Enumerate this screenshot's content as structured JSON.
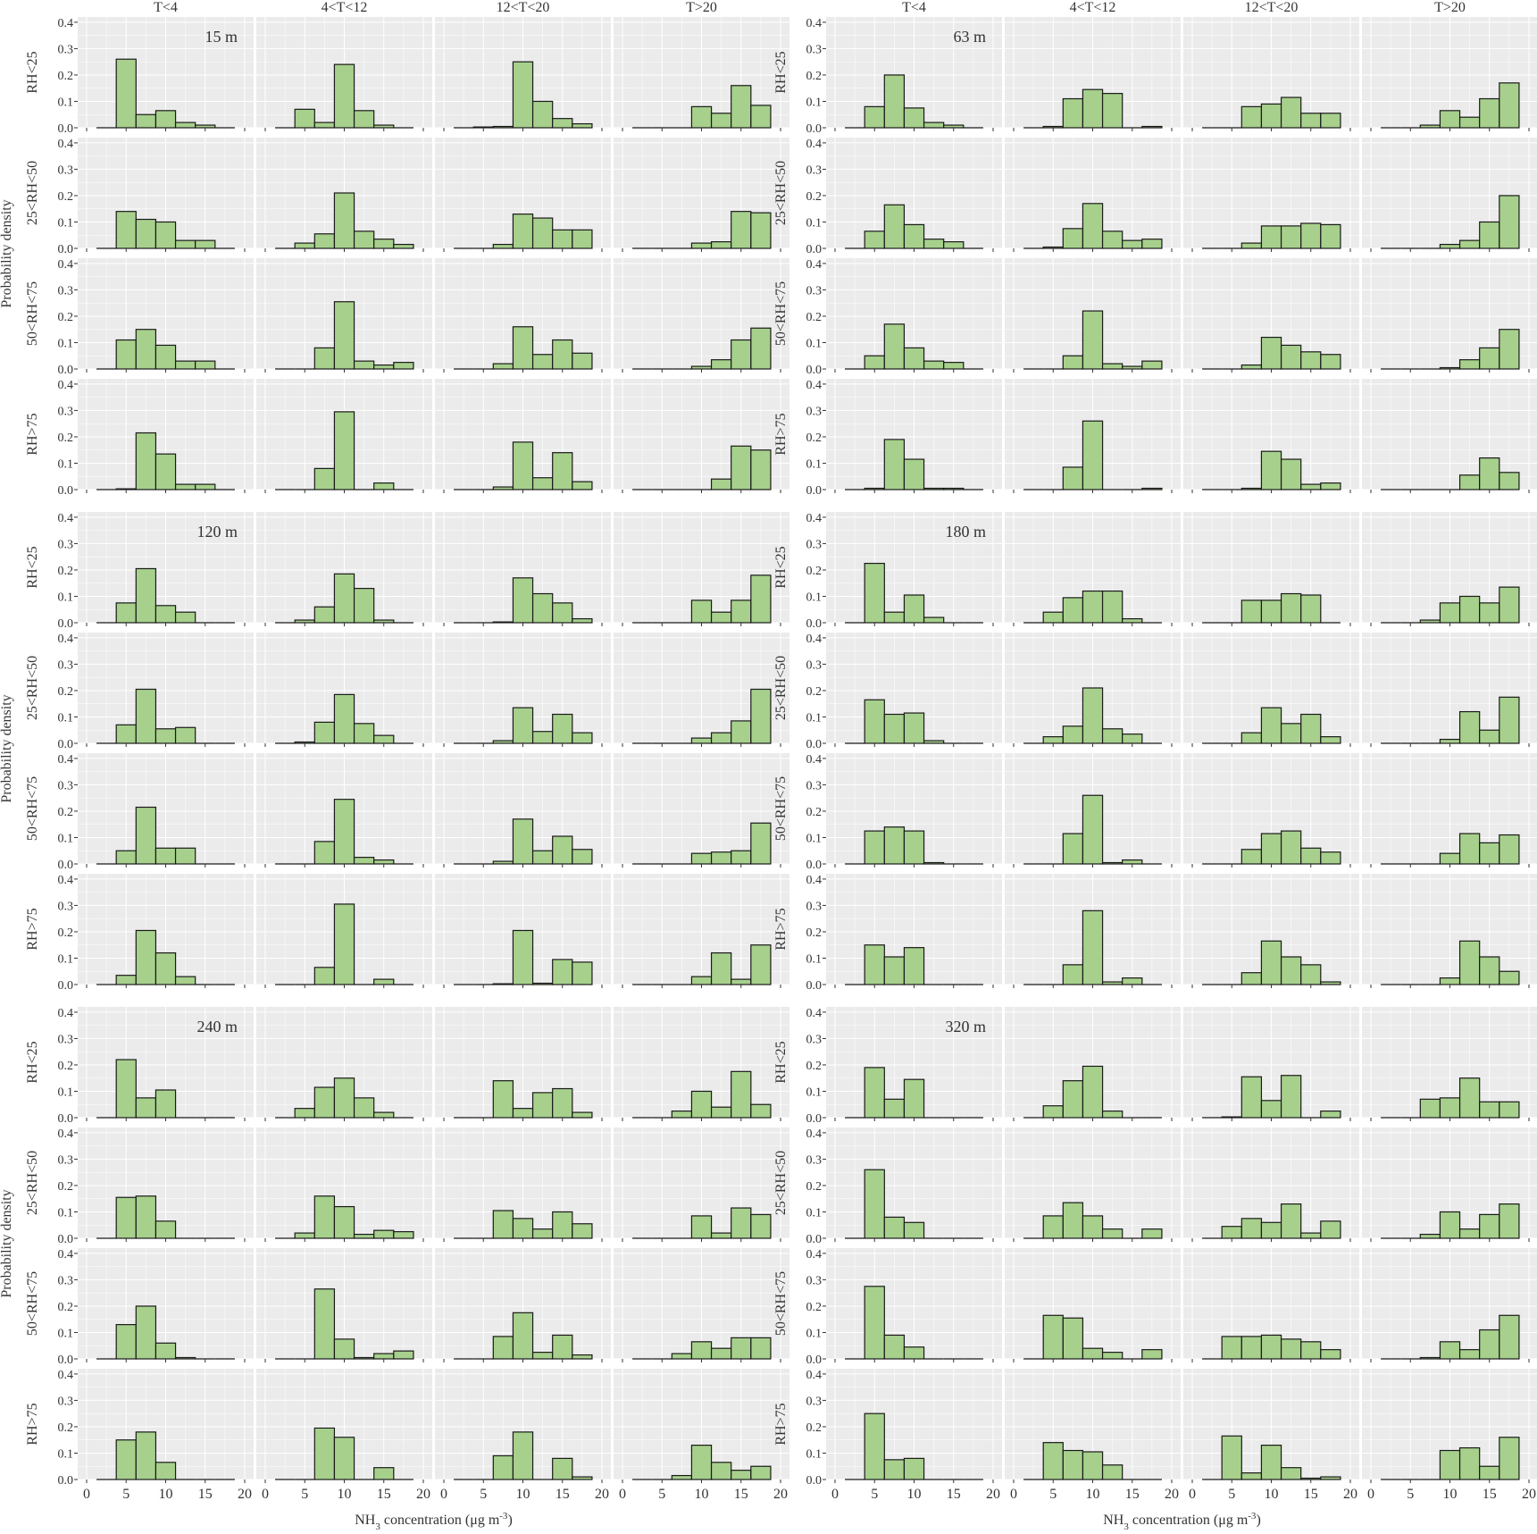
{
  "chart_data": {
    "type": "bar",
    "panel_type": "histogram",
    "x_axis": {
      "label_main": "NH",
      "label_sub": "3",
      "label_rest": " concentration (μg m",
      "label_sup": "-3",
      "label_end": ")",
      "range": [
        0,
        20
      ],
      "ticks": [
        "0",
        "5",
        "10",
        "15",
        "20"
      ]
    },
    "y_axis": {
      "label": "Probability density",
      "range": [
        0,
        0.42
      ],
      "ticks": [
        "0.0",
        "0.1",
        "0.2",
        "0.3",
        "0.4"
      ]
    },
    "temperature_bins": [
      "T<4",
      "4<T<12",
      "12<T<20",
      "T>20"
    ],
    "humidity_bins": [
      "RH<25",
      "25<RH<50",
      "50<RH<75",
      "RH>75"
    ],
    "bin_edges": [
      1.25,
      3.75,
      6.25,
      8.75,
      11.25,
      13.75,
      16.25,
      18.75
    ],
    "heights": [
      {
        "label": "15 m",
        "rows": [
          [
            [
              0,
              0.26,
              0.05,
              0.065,
              0.02,
              0.01,
              0
            ],
            [
              0,
              0.07,
              0.02,
              0.24,
              0.065,
              0.01,
              0
            ],
            [
              0,
              0.003,
              0.005,
              0.25,
              0.1,
              0.035,
              0.015
            ],
            [
              0,
              0,
              0,
              0.08,
              0.055,
              0.16,
              0.085
            ]
          ],
          [
            [
              0,
              0.14,
              0.11,
              0.1,
              0.03,
              0.03,
              0
            ],
            [
              0,
              0.02,
              0.055,
              0.21,
              0.065,
              0.035,
              0.015
            ],
            [
              0,
              0,
              0.015,
              0.13,
              0.115,
              0.07,
              0.07
            ],
            [
              0,
              0,
              0,
              0.02,
              0.025,
              0.14,
              0.135
            ]
          ],
          [
            [
              0,
              0.11,
              0.15,
              0.09,
              0.03,
              0.03,
              0
            ],
            [
              0,
              0,
              0.08,
              0.255,
              0.03,
              0.015,
              0.025
            ],
            [
              0,
              0,
              0.02,
              0.16,
              0.055,
              0.11,
              0.06
            ],
            [
              0,
              0,
              0,
              0.01,
              0.035,
              0.11,
              0.155
            ]
          ],
          [
            [
              0,
              0.003,
              0.215,
              0.135,
              0.02,
              0.02,
              0
            ],
            [
              0,
              0,
              0.08,
              0.295,
              0,
              0.025,
              0
            ],
            [
              0,
              0,
              0.01,
              0.18,
              0.045,
              0.14,
              0.03
            ],
            [
              0,
              0,
              0,
              0,
              0.04,
              0.165,
              0.15
            ]
          ]
        ]
      },
      {
        "label": "63 m",
        "rows": [
          [
            [
              0,
              0.08,
              0.2,
              0.075,
              0.02,
              0.01,
              0
            ],
            [
              0,
              0.005,
              0.11,
              0.145,
              0.13,
              0,
              0.005
            ],
            [
              0,
              0,
              0.08,
              0.09,
              0.115,
              0.055,
              0.055
            ],
            [
              0,
              0,
              0.01,
              0.065,
              0.04,
              0.11,
              0.17
            ]
          ],
          [
            [
              0,
              0.065,
              0.165,
              0.09,
              0.035,
              0.025,
              0
            ],
            [
              0,
              0.005,
              0.075,
              0.17,
              0.065,
              0.03,
              0.035
            ],
            [
              0,
              0,
              0.02,
              0.085,
              0.085,
              0.095,
              0.09
            ],
            [
              0,
              0,
              0,
              0.015,
              0.03,
              0.1,
              0.2
            ]
          ],
          [
            [
              0,
              0.05,
              0.17,
              0.08,
              0.03,
              0.025,
              0
            ],
            [
              0,
              0,
              0.05,
              0.22,
              0.02,
              0.01,
              0.03
            ],
            [
              0,
              0,
              0.015,
              0.12,
              0.09,
              0.065,
              0.055
            ],
            [
              0,
              0,
              0,
              0.005,
              0.035,
              0.08,
              0.15
            ]
          ],
          [
            [
              0,
              0.005,
              0.19,
              0.115,
              0.005,
              0.005,
              0
            ],
            [
              0,
              0,
              0.085,
              0.26,
              0,
              0,
              0.005
            ],
            [
              0,
              0,
              0.005,
              0.145,
              0.115,
              0.02,
              0.025
            ],
            [
              0,
              0,
              0,
              0,
              0.055,
              0.12,
              0.065
            ]
          ]
        ]
      },
      {
        "label": "120 m",
        "rows": [
          [
            [
              0,
              0.075,
              0.205,
              0.065,
              0.04,
              0,
              0
            ],
            [
              0,
              0.01,
              0.06,
              0.185,
              0.13,
              0.01,
              0
            ],
            [
              0,
              0,
              0.003,
              0.17,
              0.11,
              0.075,
              0.015
            ],
            [
              0,
              0,
              0,
              0.085,
              0.04,
              0.085,
              0.18
            ]
          ],
          [
            [
              0,
              0.07,
              0.205,
              0.055,
              0.06,
              0,
              0
            ],
            [
              0,
              0.005,
              0.08,
              0.185,
              0.075,
              0.03,
              0
            ],
            [
              0,
              0,
              0.01,
              0.135,
              0.045,
              0.11,
              0.04
            ],
            [
              0,
              0,
              0,
              0.02,
              0.04,
              0.085,
              0.205
            ]
          ],
          [
            [
              0,
              0.05,
              0.215,
              0.06,
              0.06,
              0,
              0
            ],
            [
              0,
              0,
              0.085,
              0.245,
              0.025,
              0.015,
              0
            ],
            [
              0,
              0,
              0.01,
              0.17,
              0.05,
              0.105,
              0.055
            ],
            [
              0,
              0,
              0,
              0.04,
              0.045,
              0.05,
              0.155
            ]
          ],
          [
            [
              0,
              0.035,
              0.205,
              0.12,
              0.03,
              0,
              0
            ],
            [
              0,
              0,
              0.065,
              0.305,
              0,
              0.02,
              0
            ],
            [
              0,
              0,
              0.003,
              0.205,
              0.005,
              0.095,
              0.085
            ],
            [
              0,
              0,
              0,
              0.03,
              0.12,
              0.02,
              0.15
            ]
          ]
        ]
      },
      {
        "label": "180 m",
        "rows": [
          [
            [
              0,
              0.225,
              0.04,
              0.105,
              0.02,
              0,
              0
            ],
            [
              0,
              0.04,
              0.095,
              0.12,
              0.12,
              0.015,
              0
            ],
            [
              0,
              0,
              0.085,
              0.085,
              0.11,
              0.105,
              0
            ],
            [
              0,
              0,
              0.01,
              0.075,
              0.1,
              0.075,
              0.135
            ]
          ],
          [
            [
              0,
              0.165,
              0.11,
              0.115,
              0.01,
              0,
              0
            ],
            [
              0,
              0.025,
              0.065,
              0.21,
              0.055,
              0.035,
              0
            ],
            [
              0,
              0,
              0.04,
              0.135,
              0.075,
              0.11,
              0.025
            ],
            [
              0,
              0,
              0,
              0.015,
              0.12,
              0.05,
              0.175
            ]
          ],
          [
            [
              0,
              0.125,
              0.14,
              0.125,
              0.005,
              0,
              0
            ],
            [
              0,
              0,
              0.115,
              0.26,
              0.005,
              0.015,
              0
            ],
            [
              0,
              0,
              0.055,
              0.115,
              0.125,
              0.06,
              0.045
            ],
            [
              0,
              0,
              0,
              0.04,
              0.115,
              0.08,
              0.11
            ]
          ],
          [
            [
              0,
              0.15,
              0.105,
              0.14,
              0,
              0,
              0
            ],
            [
              0,
              0,
              0.075,
              0.28,
              0.01,
              0.025,
              0
            ],
            [
              0,
              0,
              0.045,
              0.165,
              0.105,
              0.075,
              0.01
            ],
            [
              0,
              0,
              0,
              0.025,
              0.165,
              0.105,
              0.05
            ]
          ]
        ]
      },
      {
        "label": "240 m",
        "rows": [
          [
            [
              0,
              0.22,
              0.075,
              0.105,
              0,
              0,
              0
            ],
            [
              0,
              0.035,
              0.115,
              0.15,
              0.075,
              0.02,
              0
            ],
            [
              0,
              0,
              0.14,
              0.035,
              0.095,
              0.11,
              0.02
            ],
            [
              0,
              0,
              0.025,
              0.1,
              0.04,
              0.175,
              0.05
            ]
          ],
          [
            [
              0,
              0.155,
              0.16,
              0.065,
              0,
              0,
              0
            ],
            [
              0,
              0.02,
              0.16,
              0.12,
              0.015,
              0.03,
              0.025
            ],
            [
              0,
              0,
              0.105,
              0.075,
              0.035,
              0.1,
              0.055
            ],
            [
              0,
              0,
              0,
              0.085,
              0.02,
              0.115,
              0.09
            ]
          ],
          [
            [
              0,
              0.13,
              0.2,
              0.06,
              0.005,
              0,
              0
            ],
            [
              0,
              0,
              0.265,
              0.075,
              0.005,
              0.02,
              0.03
            ],
            [
              0,
              0,
              0.085,
              0.175,
              0.025,
              0.09,
              0.015
            ],
            [
              0,
              0,
              0.02,
              0.065,
              0.04,
              0.08,
              0.08
            ]
          ],
          [
            [
              0,
              0.15,
              0.18,
              0.065,
              0,
              0,
              0
            ],
            [
              0,
              0,
              0.195,
              0.16,
              0,
              0.045,
              0
            ],
            [
              0,
              0,
              0.09,
              0.18,
              0,
              0.08,
              0.01
            ],
            [
              0,
              0,
              0.015,
              0.13,
              0.065,
              0.035,
              0.05
            ]
          ]
        ]
      },
      {
        "label": "320 m",
        "rows": [
          [
            [
              0,
              0.19,
              0.07,
              0.145,
              0,
              0,
              0
            ],
            [
              0,
              0.045,
              0.14,
              0.195,
              0.025,
              0,
              0
            ],
            [
              0,
              0.003,
              0.155,
              0.065,
              0.16,
              0,
              0.025
            ],
            [
              0,
              0,
              0.07,
              0.075,
              0.15,
              0.06,
              0.06
            ]
          ],
          [
            [
              0,
              0.26,
              0.08,
              0.06,
              0,
              0,
              0
            ],
            [
              0,
              0.085,
              0.135,
              0.085,
              0.035,
              0,
              0.035
            ],
            [
              0,
              0.045,
              0.075,
              0.06,
              0.13,
              0.02,
              0.065
            ],
            [
              0,
              0,
              0.015,
              0.1,
              0.035,
              0.09,
              0.13
            ]
          ],
          [
            [
              0,
              0.275,
              0.09,
              0.045,
              0,
              0,
              0
            ],
            [
              0,
              0.165,
              0.155,
              0.04,
              0.025,
              0,
              0.035
            ],
            [
              0,
              0.085,
              0.085,
              0.09,
              0.075,
              0.065,
              0.035
            ],
            [
              0,
              0,
              0.005,
              0.065,
              0.035,
              0.11,
              0.165
            ]
          ],
          [
            [
              0,
              0.25,
              0.075,
              0.08,
              0,
              0,
              0
            ],
            [
              0,
              0.14,
              0.11,
              0.105,
              0.055,
              0,
              0
            ],
            [
              0,
              0.165,
              0.025,
              0.13,
              0.045,
              0.005,
              0.01
            ],
            [
              0,
              0,
              0,
              0.11,
              0.12,
              0.05,
              0.16
            ]
          ]
        ]
      }
    ],
    "fill_color": "#a7d08c",
    "edge_color": "#1a1a1a",
    "panel_background": "#ebebeb",
    "grid_major_color": "#ffffff",
    "grid": true
  }
}
